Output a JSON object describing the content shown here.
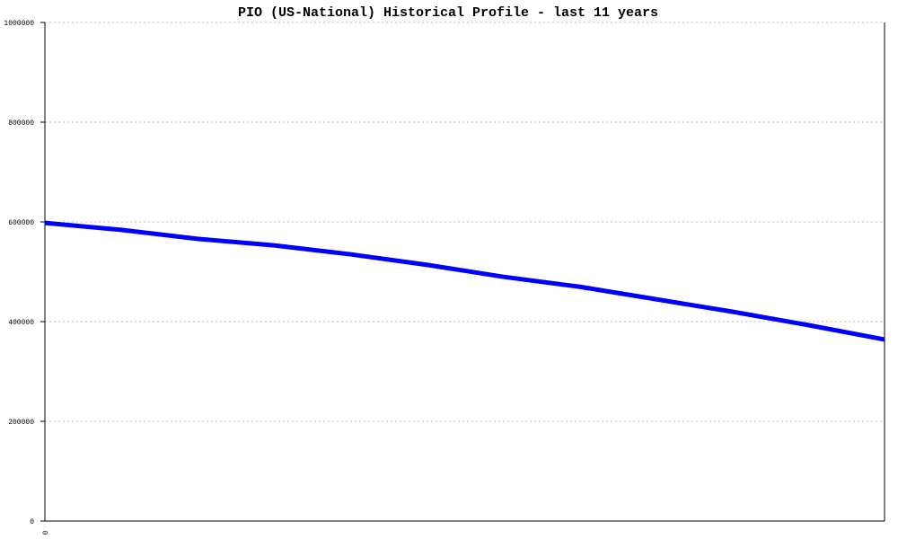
{
  "chart_data": {
    "type": "line",
    "title": "PIO (US-National) Historical Profile - last 11 years",
    "categories": [
      "0",
      null,
      null,
      null,
      null,
      null,
      null,
      null,
      null,
      null,
      null,
      null
    ],
    "series": [
      {
        "color": "#0000ff",
        "values": [
          598000,
          584000,
          566000,
          553000,
          535000,
          514000,
          490000,
          470000,
          445000,
          420000,
          393000,
          364000
        ]
      }
    ],
    "ylim": [
      0,
      1000000
    ],
    "yticks": [
      0,
      200000,
      400000,
      600000,
      800000,
      1000000
    ],
    "grid": true
  }
}
